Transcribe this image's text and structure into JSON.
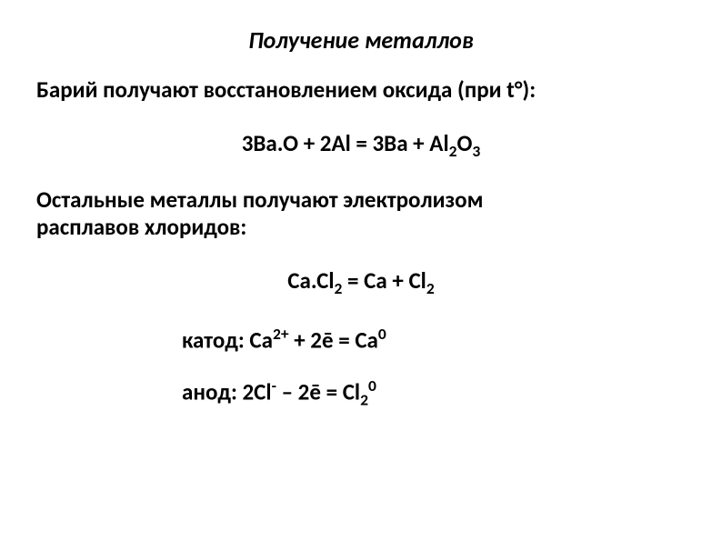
{
  "title": "Получение металлов",
  "intro": "Барий получают восстановлением оксида (при t°):",
  "equation1_parts": {
    "pre1": "3Ba.O + 2Al = 3Ba + Al",
    "sub1": "2",
    "mid1": "O",
    "sub2": "3"
  },
  "paragraph2_line1": "Остальные металлы получают электролизом",
  "paragraph2_line2": "расплавов хлоридов:",
  "equation2_parts": {
    "pre": "Ca.Cl",
    "sub1": "2",
    "mid": " = Ca + Cl",
    "sub2": "2"
  },
  "cathode_parts": {
    "label": "катод: Ca",
    "sup1": "2+",
    "mid": " + 2ē = Ca",
    "sup2": "0"
  },
  "anode_parts": {
    "label": "анод: 2Cl",
    "sup1": "-",
    "mid": " – 2ē = Cl",
    "sub1": "2",
    "sup2": "0"
  },
  "colors": {
    "background": "#ffffff",
    "text": "#000000"
  },
  "fonts": {
    "title_size": 26,
    "body_size": 25
  }
}
